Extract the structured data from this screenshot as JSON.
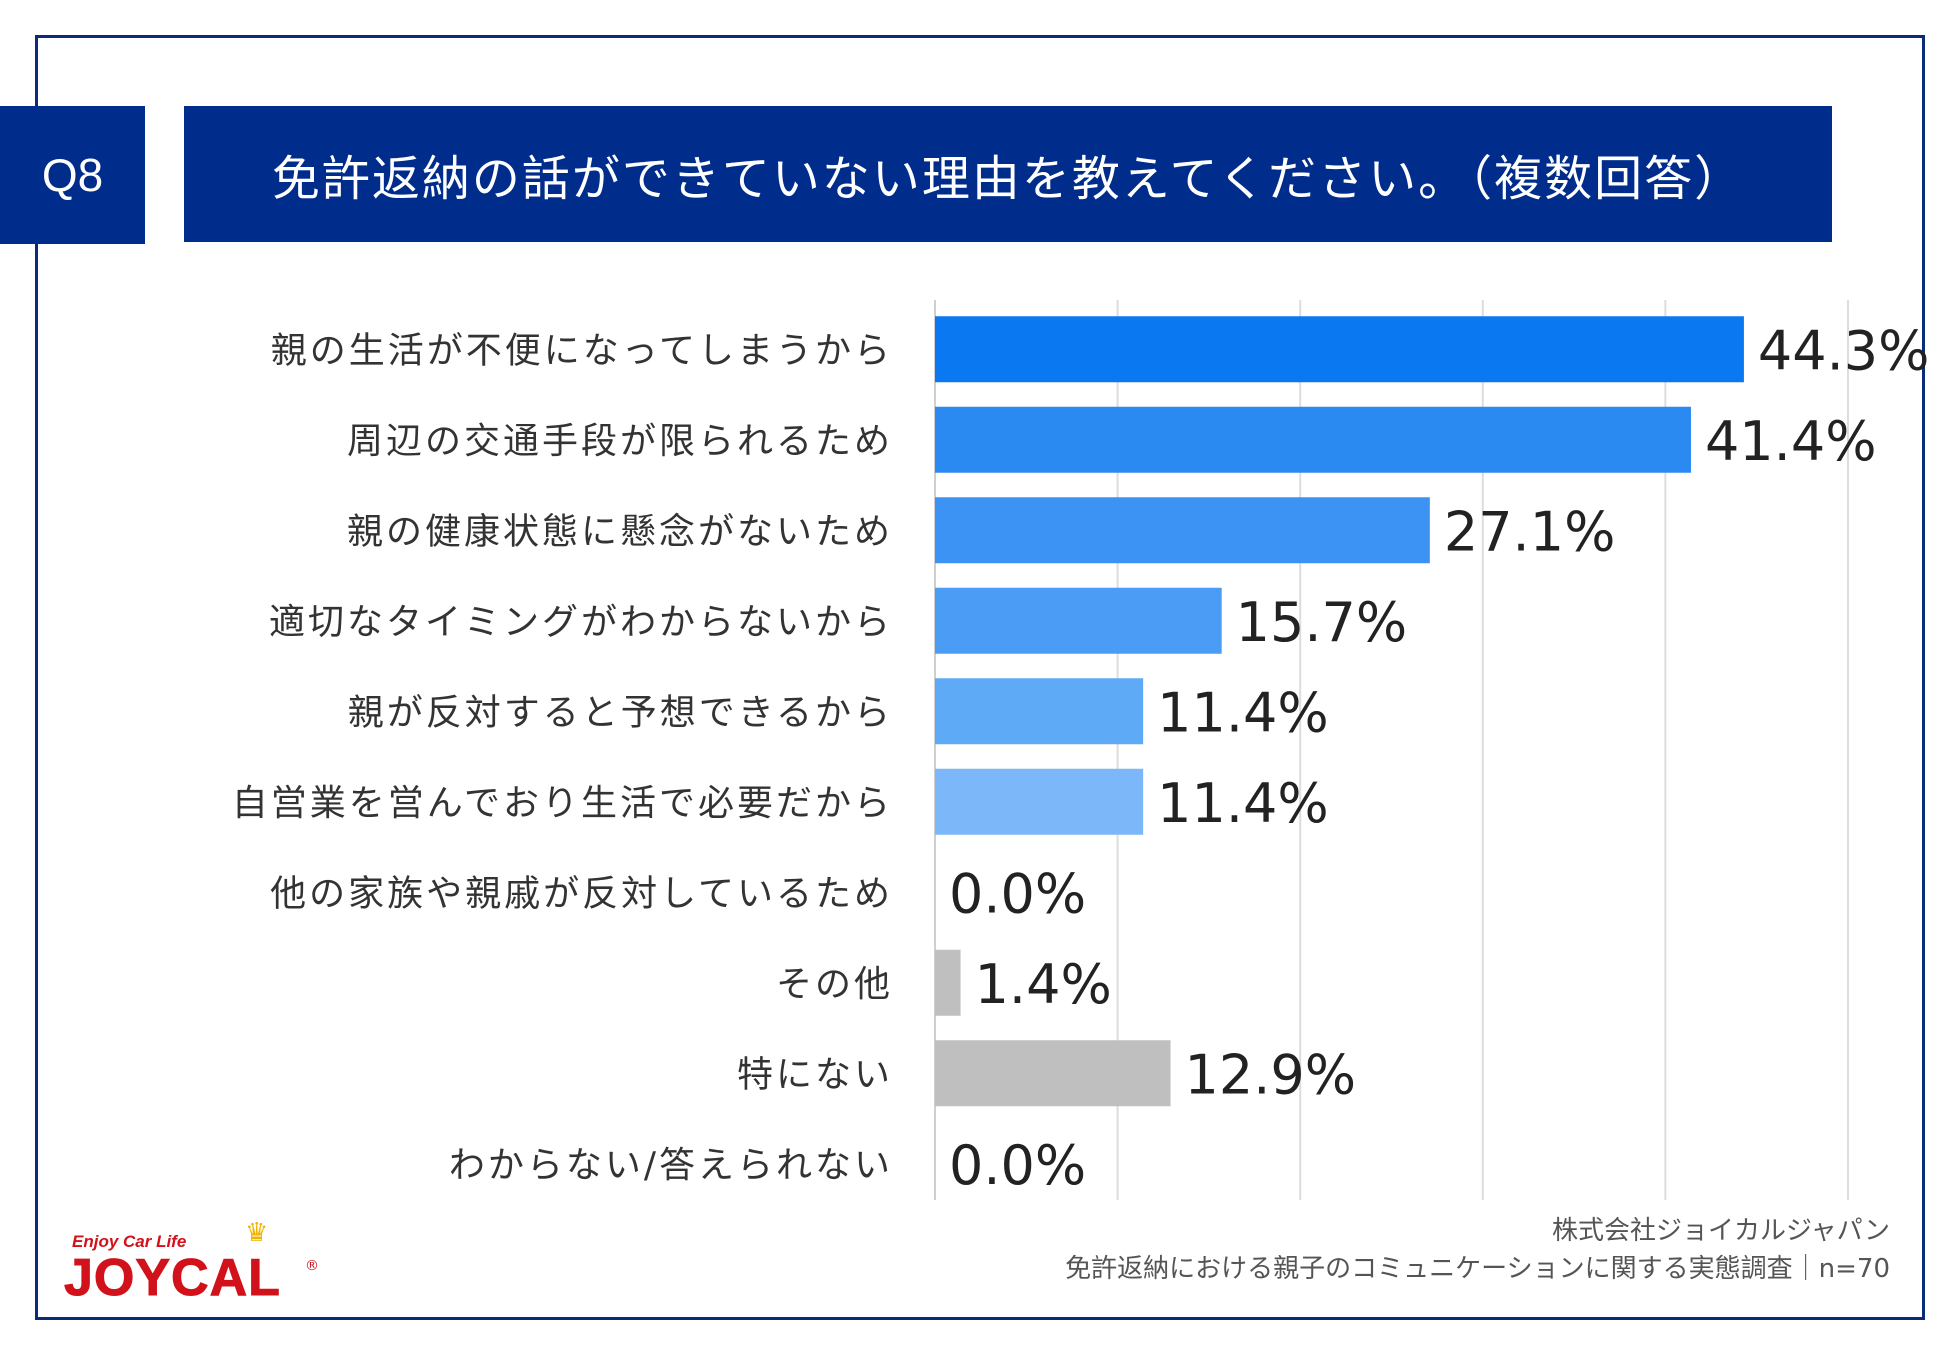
{
  "header": {
    "q_label": "Q8",
    "title": "免許返納の話ができていない理由を教えてください。（複数回答）"
  },
  "chart_data": {
    "type": "bar",
    "orientation": "horizontal",
    "title": "免許返納の話ができていない理由を教えてください。（複数回答）",
    "categories": [
      "親の生活が不便になってしまうから",
      "周辺の交通手段が限られるため",
      "親の健康状態に懸念がないため",
      "適切なタイミングがわからないから",
      "親が反対すると予想できるから",
      "自営業を営んでおり生活で必要だから",
      "他の家族や親戚が反対しているため",
      "その他",
      "特にない",
      "わからない/答えられない"
    ],
    "values": [
      44.3,
      41.4,
      27.1,
      15.7,
      11.4,
      11.4,
      0.0,
      1.4,
      12.9,
      0.0
    ],
    "value_labels": [
      "44.3%",
      "41.4%",
      "27.1%",
      "15.7%",
      "11.4%",
      "11.4%",
      "0.0%",
      "1.4%",
      "12.9%",
      "0.0%"
    ],
    "colors": [
      "#0a78f0",
      "#2b8af2",
      "#3d93f3",
      "#4a9cf5",
      "#5faaf7",
      "#7cb8f9",
      "#7cb8f9",
      "#bfbfbf",
      "#bfbfbf",
      "#bfbfbf"
    ],
    "xlim": [
      0,
      50
    ],
    "grid": true,
    "xlabel": "",
    "ylabel": ""
  },
  "footer": {
    "company": "株式会社ジョイカルジャパン",
    "survey": "免許返納における親子のコミュニケーションに関する実態調査｜n=70"
  },
  "logo": {
    "tagline": "Enjoy Car Life",
    "brand": "JOYCAL",
    "reg": "®"
  },
  "colors": {
    "navy": "#002d8c",
    "frame": "#0a2a7a"
  }
}
